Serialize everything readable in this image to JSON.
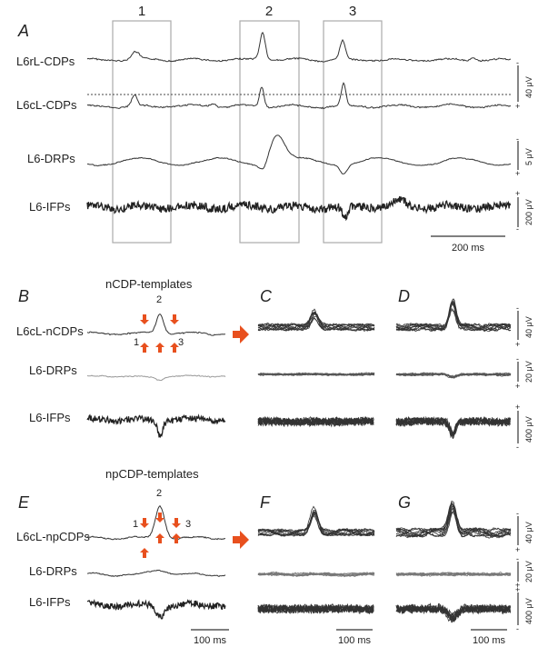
{
  "panelA": {
    "label": "A",
    "windows": [
      "1",
      "2",
      "3"
    ],
    "rows": [
      "L6rL-CDPs",
      "L6cL-CDPs",
      "L6-DRPs",
      "L6-IFPs"
    ],
    "scale_time": "200 ms",
    "scale_cdp": "40 μV",
    "scale_drp": "5 μV",
    "scale_ifp": "200 μV"
  },
  "panelB": {
    "label": "B",
    "title": "nCDP-templates",
    "rows": [
      "L6cL-nCDPs",
      "L6-DRPs",
      "L6-IFPs"
    ],
    "markers": [
      "1",
      "2",
      "3"
    ]
  },
  "panelC": {
    "label": "C"
  },
  "panelD": {
    "label": "D",
    "scale_cdp": "40 μV",
    "scale_drp": "20 μV",
    "scale_ifp": "400 μV"
  },
  "panelE": {
    "label": "E",
    "title": "npCDP-templates",
    "rows": [
      "L6cL-npCDPs",
      "L6-DRPs",
      "L6-IFPs"
    ],
    "markers": [
      "1",
      "2",
      "3"
    ],
    "scale_time": "100 ms"
  },
  "panelF": {
    "label": "F",
    "scale_time": "100 ms"
  },
  "panelG": {
    "label": "G",
    "scale_cdp": "40 μV",
    "scale_drp": "20 μV",
    "scale_ifp": "400 μV",
    "scale_time": "100 ms"
  },
  "colors": {
    "trace": "#333333",
    "arrow": "#e8501e",
    "window": "#aaaaaa",
    "dotted": "#444444"
  },
  "rows": {
    "B": [
      "L6cL-nCDPs",
      "L6-DRPs",
      "L6-IFPs"
    ],
    "E": [
      "L6cL-npCDPs",
      "L6-DRPs",
      "L6-IFPs"
    ]
  },
  "big_arrow": "orange-right-arrow-icon"
}
